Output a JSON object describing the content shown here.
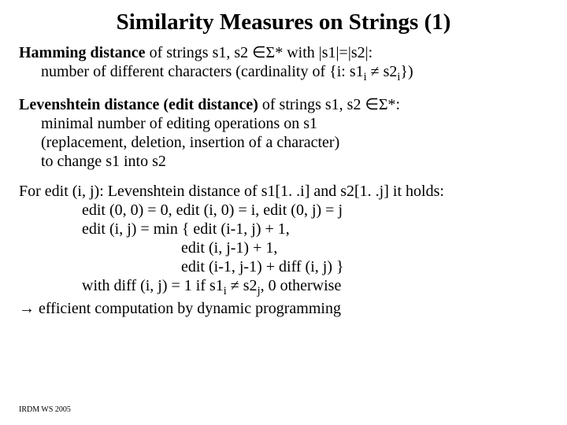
{
  "title": "Similarity Measures on Strings (1)",
  "hamming": {
    "label": "Hamming distance",
    "line1_rest": " of strings s1, s2 ∈Σ* with |s1|=|s2|:",
    "line2": "number of different characters (cardinality of {i: s1",
    "line2_sub1": "i",
    "line2_mid": " ≠ s2",
    "line2_sub2": "i",
    "line2_end": "})"
  },
  "lev": {
    "label": "Levenshtein distance (edit distance)",
    "line1_rest": " of strings s1, s2 ∈Σ*:",
    "line2": "minimal number of editing operations on s1",
    "line3": "(replacement, deletion, insertion of a character)",
    "line4": "to change s1 into s2"
  },
  "edit": {
    "line1": "For  edit (i, j): Levenshtein distance of s1[1. .i] and s2[1. .j] it holds:",
    "line2": "edit (0, 0) = 0, edit (i, 0) = i, edit (0, j) = j",
    "line3": "edit (i, j) = min { edit (i-1, j) + 1,",
    "line4": "edit (i, j-1) + 1,",
    "line5": "edit (i-1, j-1) + diff (i, j) }",
    "diff_a": "with diff (i, j) = 1 if s1",
    "diff_sub1": "i",
    "diff_b": " ≠ s2",
    "diff_sub2": "j",
    "diff_c": ", 0 otherwise",
    "conclusion": "→ efficient computation by dynamic programming"
  },
  "footer": "IRDM  WS 2005"
}
